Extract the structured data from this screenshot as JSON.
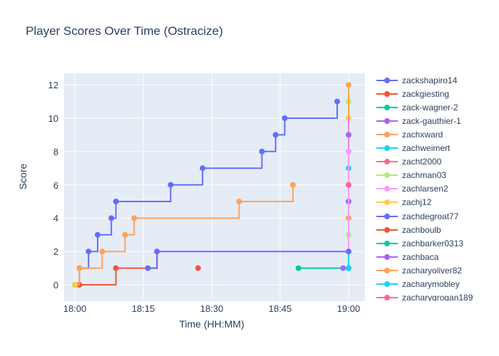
{
  "figure": {
    "title": "Player Scores Over Time (Ostracize)",
    "xaxis": {
      "label": "Time (HH:MM)",
      "ticks": [
        "18:00",
        "18:15",
        "18:30",
        "18:45",
        "19:00"
      ]
    },
    "yaxis": {
      "label": "Score",
      "ticks": [
        "0",
        "2",
        "4",
        "6",
        "8",
        "10",
        "12"
      ]
    }
  },
  "colors": {
    "background": "#ffffff",
    "plot_background": "#E5ECF6",
    "gridline": "#ffffff",
    "text": "#2a3f5f"
  },
  "chart_data": {
    "type": "line",
    "title": "Player Scores Over Time (Ostracize)",
    "xlabel": "Time (HH:MM)",
    "ylabel": "Score",
    "line_shape": "hv",
    "grid": true,
    "legend_position": "right",
    "x_unit": "minutes after 18:00",
    "x_tick_minutes": [
      0,
      15,
      30,
      45,
      60
    ],
    "x_tick_labels": [
      "18:00",
      "18:15",
      "18:30",
      "18:45",
      "19:00"
    ],
    "y_tick_values": [
      0,
      2,
      4,
      6,
      8,
      10,
      12
    ],
    "ylim": [
      0,
      12
    ],
    "series": [
      {
        "name": "zackshapiro14",
        "color": "#636EFA",
        "points": [
          [
            0,
            0
          ],
          [
            1,
            1
          ],
          [
            3,
            2
          ],
          [
            5,
            3
          ],
          [
            8,
            4
          ],
          [
            9,
            5
          ],
          [
            21,
            6
          ],
          [
            28,
            7
          ],
          [
            41,
            8
          ],
          [
            44,
            9
          ],
          [
            46,
            10
          ],
          [
            57.5,
            11
          ]
        ]
      },
      {
        "name": "zackgiesting",
        "color": "#EF553B",
        "points": [
          [
            1,
            0
          ],
          [
            9,
            1
          ],
          [
            18,
            2
          ]
        ]
      },
      {
        "name": "zack-wagner-2",
        "color": "#00CC96",
        "points": [
          [
            49,
            1
          ],
          [
            60,
            1
          ]
        ]
      },
      {
        "name": "zack-gauthier-1",
        "color": "#AB63FA",
        "points": [
          [
            58.8,
            1
          ]
        ]
      },
      {
        "name": "zachxward",
        "color": "#FFA15A",
        "points": [
          [
            0,
            0
          ],
          [
            1,
            1
          ],
          [
            6,
            2
          ],
          [
            11,
            3
          ],
          [
            13,
            4
          ],
          [
            36,
            5
          ],
          [
            47.8,
            6
          ]
        ]
      },
      {
        "name": "zachweimert",
        "color": "#19D3F3",
        "points": [
          [
            60,
            7
          ]
        ]
      },
      {
        "name": "zacht2000",
        "color": "#FF6692",
        "points": [
          [
            60,
            6
          ]
        ]
      },
      {
        "name": "zachman03",
        "color": "#B6E880",
        "points": [
          [
            60,
            11
          ]
        ]
      },
      {
        "name": "zachlarsen2",
        "color": "#FF97FF",
        "points": [
          [
            60,
            2
          ],
          [
            60,
            8
          ]
        ]
      },
      {
        "name": "zachj12",
        "color": "#FECB52",
        "points": [
          [
            0,
            0
          ]
        ]
      },
      {
        "name": "zachdegroat77",
        "color": "#636EFA",
        "points": [
          [
            16,
            1
          ],
          [
            18,
            2
          ],
          [
            60,
            2
          ]
        ]
      },
      {
        "name": "zachboulb",
        "color": "#EF553B",
        "points": [
          [
            27,
            1
          ]
        ]
      },
      {
        "name": "zachbarker0313",
        "color": "#00CC96",
        "points": [
          [
            60,
            1
          ]
        ]
      },
      {
        "name": "zachbaca",
        "color": "#AB63FA",
        "points": [
          [
            60,
            9
          ]
        ]
      },
      {
        "name": "zacharyoliver82",
        "color": "#FFA15A",
        "points": [
          [
            60,
            12
          ]
        ]
      },
      {
        "name": "zacharymobley",
        "color": "#19D3F3",
        "points": [
          [
            60,
            1
          ]
        ]
      },
      {
        "name": "zacharygrogan189",
        "color": "#FF6692",
        "points": [
          [
            60,
            6
          ]
        ]
      }
    ],
    "overlay_markers_at_1900": [
      {
        "score": 3,
        "color": "#B6E880"
      },
      {
        "score": 4,
        "color": "#FFA15A"
      },
      {
        "score": 5,
        "color": "#AB63FA"
      },
      {
        "score": 10,
        "color": "#FECB52"
      }
    ],
    "overlay_segments_at_1900": [
      {
        "from": 1,
        "to": 2,
        "color": "#19D3F3"
      },
      {
        "from": 8,
        "to": 10,
        "color": "#F07EF0"
      },
      {
        "from": 10,
        "to": 12,
        "color": "#FBAD3B"
      }
    ]
  }
}
